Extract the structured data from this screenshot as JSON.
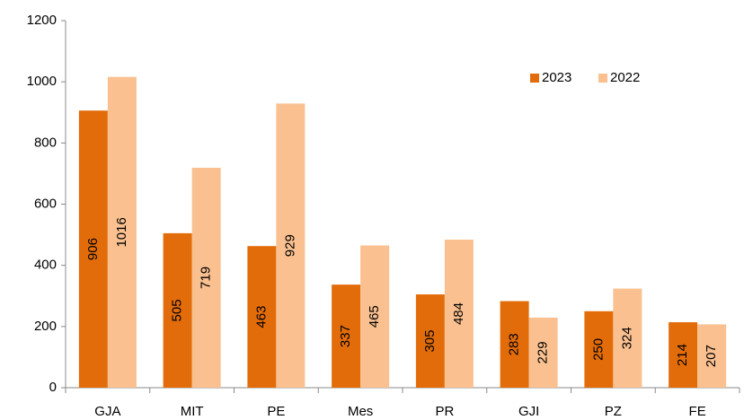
{
  "chart_data": {
    "type": "bar",
    "categories": [
      "GJA",
      "MIT",
      "PE",
      "Mes",
      "PR",
      "GJI",
      "PZ",
      "FE"
    ],
    "series": [
      {
        "name": "2023",
        "color": "#e36c0a",
        "values": [
          906,
          505,
          463,
          337,
          305,
          283,
          250,
          214
        ]
      },
      {
        "name": "2022",
        "color": "#fac090",
        "values": [
          1016,
          719,
          929,
          465,
          484,
          229,
          324,
          207
        ]
      }
    ],
    "ylim": [
      0,
      1200
    ],
    "yticks": [
      0,
      200,
      400,
      600,
      800,
      1000,
      1200
    ],
    "grid": false,
    "legend": "top-right",
    "data_labels": true
  }
}
